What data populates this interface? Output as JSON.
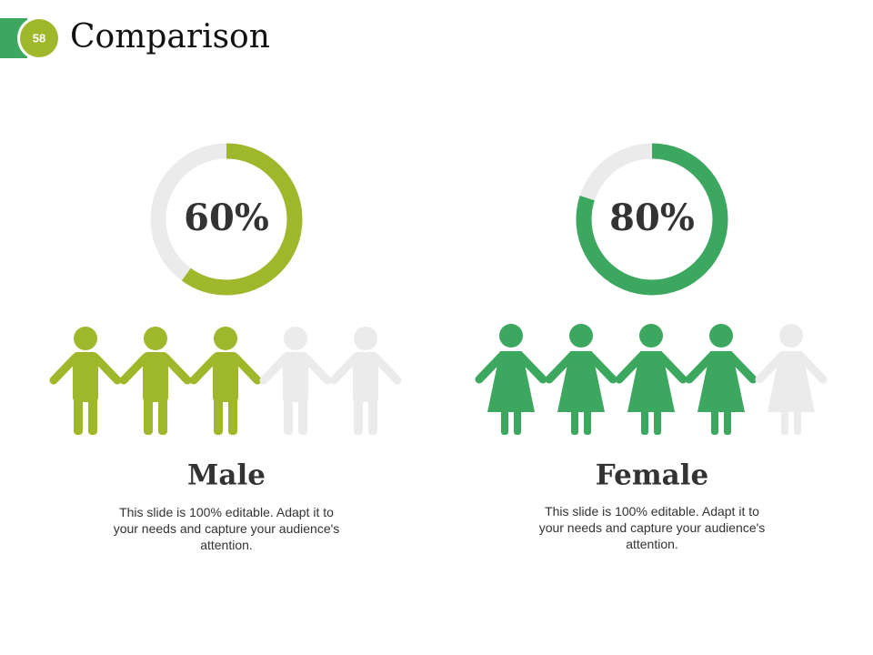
{
  "slide_number": "58",
  "title": "Comparison",
  "panels": [
    {
      "value": 60,
      "value_label": "60%",
      "color": "#9fb82b",
      "name": "Male",
      "text": "This slide is 100% editable. Adapt it to your needs and capture your audience's attention."
    },
    {
      "value": 80,
      "value_label": "80%",
      "color": "#3ca85f",
      "name": "Female",
      "text": "This slide is 100% editable. Adapt it to your needs and capture your audience's attention."
    }
  ]
}
